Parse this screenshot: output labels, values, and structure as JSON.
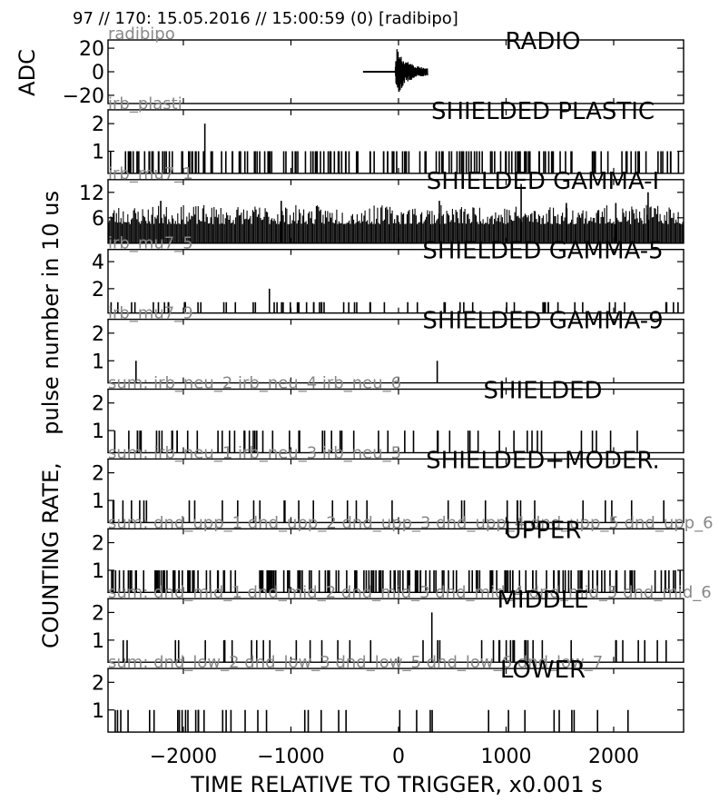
{
  "header": "97 // 170:   15.05.2016 // 15:00:59 (0)  [radibipo]",
  "chart_data": {
    "type": "stacked time-series (pulse counts per 10 us)",
    "xlim": [
      -2700,
      2650
    ],
    "x_ticks": [
      -2000,
      -1000,
      0,
      1000,
      2000
    ],
    "x_tick_labels": [
      "−2000",
      "−1000",
      "0",
      "1000",
      "2000"
    ],
    "xlabel": "TIME RELATIVE TO TRIGGER,   x0.001 s",
    "ylabel_adc": "ADC",
    "ylabel_rate": "COUNTING RATE,    pulse number in 10 us",
    "grid": false,
    "panels": [
      {
        "title": "RADIO",
        "detector": "radibipo",
        "ylim": [
          -27,
          27
        ],
        "y_ticks": [
          20,
          0,
          -20
        ],
        "y_tick_labels": [
          "20",
          "0",
          "−20"
        ],
        "kind": "waveform",
        "baseline_start": -330,
        "burst_start": -30,
        "burst_end": 270,
        "amplitude": 22
      },
      {
        "title": "SHIELDED PLASTIC",
        "detector": "irb_plasti",
        "ylim": [
          0.2,
          2.5
        ],
        "y_ticks": [
          2,
          1
        ],
        "y_tick_labels": [
          "2",
          "1"
        ],
        "kind": "pulses",
        "pulse_count": 170,
        "pulse_value": 1,
        "seed": 11,
        "peaks": [
          {
            "x": -1800,
            "y": 2
          }
        ]
      },
      {
        "title": "SHIELDED GAMMA-I",
        "detector": "irb_mu7_1",
        "ylim": [
          0,
          15
        ],
        "y_ticks": [
          12,
          6
        ],
        "y_tick_labels": [
          "12",
          "6"
        ],
        "kind": "noise",
        "noise_min": 4.5,
        "noise_max": 9,
        "seed": 23,
        "peaks": [
          {
            "x": -2210,
            "y": 10
          },
          {
            "x": -1090,
            "y": 10
          },
          {
            "x": 380,
            "y": 10
          },
          {
            "x": 1140,
            "y": 14
          },
          {
            "x": 1560,
            "y": 9.5
          },
          {
            "x": 2020,
            "y": 9.5
          },
          {
            "x": 2320,
            "y": 12
          }
        ]
      },
      {
        "title": "SHIELDED GAMMA-5",
        "detector": "irb_mu7_5",
        "ylim": [
          0.2,
          4.9
        ],
        "y_ticks": [
          4,
          2
        ],
        "y_tick_labels": [
          "4",
          "2"
        ],
        "kind": "pulses",
        "pulse_count": 65,
        "pulse_value": 1,
        "seed": 37,
        "peaks": [
          {
            "x": -1200,
            "y": 2
          }
        ]
      },
      {
        "title": "SHIELDED GAMMA-9",
        "detector": "irb_mu7_9",
        "ylim": [
          0.2,
          2.5
        ],
        "y_ticks": [
          2,
          1
        ],
        "y_tick_labels": [
          "2",
          "1"
        ],
        "kind": "pulses",
        "pulse_count": 0,
        "pulse_value": 1,
        "seed": 41,
        "peaks": [
          {
            "x": -2440,
            "y": 1
          },
          {
            "x": 360,
            "y": 1
          }
        ]
      },
      {
        "title": "SHIELDED",
        "detector": "sum: irb_neu_2 irb_neu_4 irb_neu_6",
        "ylim": [
          0.2,
          2.5
        ],
        "y_ticks": [
          2,
          1
        ],
        "y_tick_labels": [
          "2",
          "1"
        ],
        "kind": "pulses",
        "pulse_count": 58,
        "pulse_value": 1,
        "seed": 53,
        "peaks": []
      },
      {
        "title": "SHIELDED+MODER.",
        "detector": "sum: irb_neu_1 irb_neu_3 irb_neu_5",
        "ylim": [
          0.2,
          2.5
        ],
        "y_ticks": [
          2,
          1
        ],
        "y_tick_labels": [
          "2",
          "1"
        ],
        "kind": "pulses",
        "pulse_count": 36,
        "pulse_value": 1,
        "seed": 67,
        "peaks": []
      },
      {
        "title": "UPPER",
        "detector": "sum: dnd_upp_1 dnd_upp_2 dnd_upp_3 dnd_upp_4 dnd_upp_5 dnd_upp_6",
        "ylim": [
          0.2,
          2.5
        ],
        "y_ticks": [
          2,
          1
        ],
        "y_tick_labels": [
          "2",
          "1"
        ],
        "kind": "pulses",
        "pulse_count": 175,
        "pulse_value": 1,
        "seed": 79,
        "peaks": []
      },
      {
        "title": "MIDDLE",
        "detector": "sum: dnd_mid_1 dnd_mid_2 dnd_mid_3 dnd_mid_4 dnd_mid_5 dnd_mid_6",
        "ylim": [
          0.2,
          2.5
        ],
        "y_ticks": [
          2,
          1
        ],
        "y_tick_labels": [
          "2",
          "1"
        ],
        "kind": "pulses",
        "pulse_count": 42,
        "pulse_value": 1,
        "seed": 83,
        "peaks": [
          {
            "x": 310,
            "y": 2
          }
        ]
      },
      {
        "title": "LOWER",
        "detector": "sum: dnd_low_2 dnd_low_3 dnd_low_5 dnd_low_6 dnd_low_7",
        "ylim": [
          0.2,
          2.5
        ],
        "y_ticks": [
          2,
          1
        ],
        "y_tick_labels": [
          "2",
          "1"
        ],
        "kind": "pulses",
        "pulse_count": 40,
        "pulse_value": 1,
        "seed": 97,
        "peaks": []
      }
    ]
  }
}
